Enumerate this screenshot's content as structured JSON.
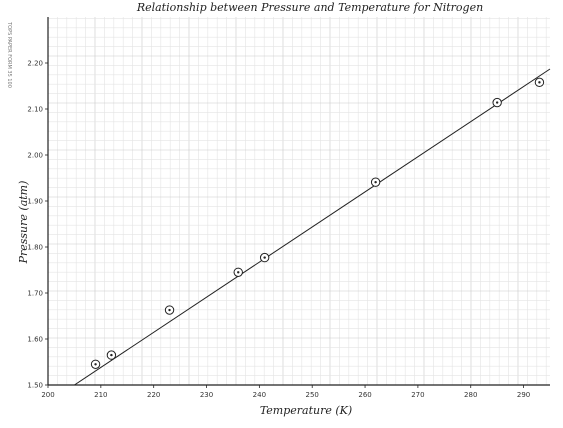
{
  "chart_data": {
    "type": "scatter",
    "title": "Relationship between Pressure and Temperature for Nitrogen",
    "xlabel": "Temperature (K)",
    "ylabel": "Pressure (atm)",
    "xlim": [
      200,
      295
    ],
    "ylim": [
      1.5,
      2.3
    ],
    "x_ticks": [
      200,
      210,
      220,
      230,
      240,
      250,
      260,
      270,
      280,
      290
    ],
    "x_tick_labels": [
      "200",
      "210",
      "220",
      "230",
      "240",
      "250",
      "260",
      "270",
      "280",
      "290"
    ],
    "y_ticks": [
      1.5,
      1.6,
      1.7,
      1.8,
      1.9,
      2.0,
      2.1,
      2.2
    ],
    "y_tick_labels": [
      "1.50",
      "1.60",
      "1.70",
      "1.80",
      "1.90",
      "2.00",
      "2.10",
      "2.20"
    ],
    "grid": true,
    "series": [
      {
        "x": [
          209,
          212,
          223,
          236,
          241,
          262,
          285,
          293
        ],
        "y": [
          1.545,
          1.565,
          1.663,
          1.745,
          1.777,
          1.941,
          2.114,
          2.158
        ]
      }
    ],
    "fit_line": {
      "x": [
        205,
        295
      ],
      "y": [
        1.5,
        2.187
      ]
    }
  },
  "colors": {
    "ink": "#222222",
    "grid_minor": "#e4e4e4",
    "grid_major": "#c9c9c9"
  },
  "side_note": "TOPS PAPER FORM 35 100"
}
